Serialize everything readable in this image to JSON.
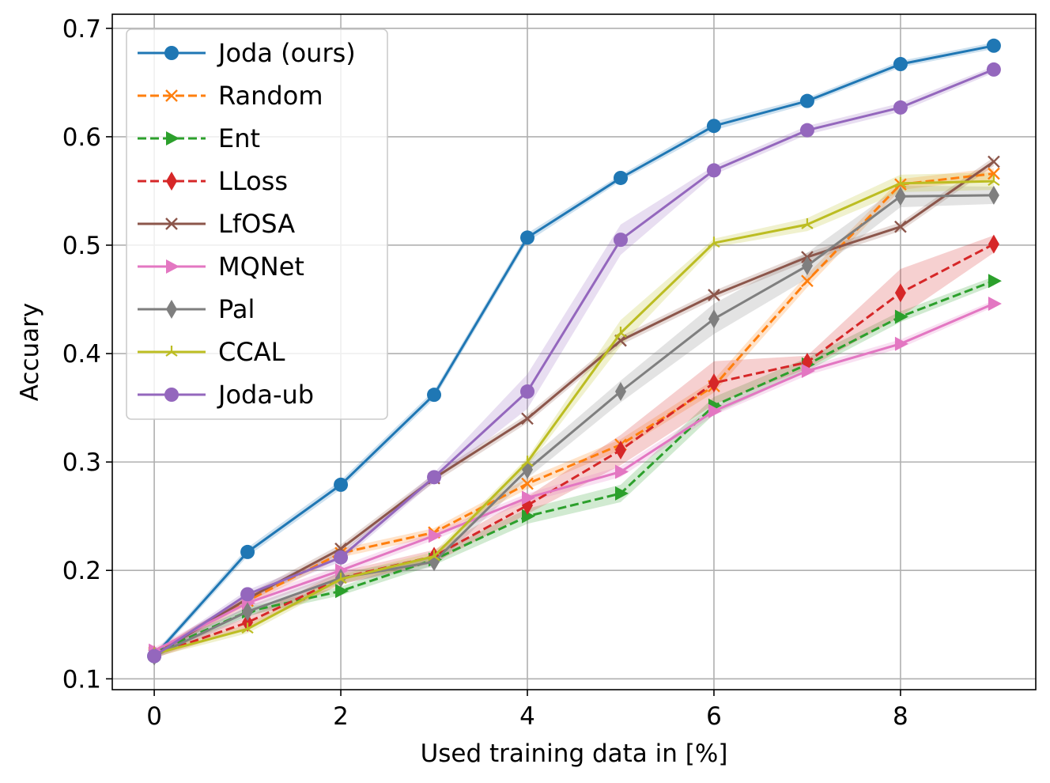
{
  "chart_data": {
    "type": "line",
    "title": "",
    "xlabel": "Used training data in [%]",
    "ylabel": "Accuary",
    "xlim": [
      -0.45,
      9.45
    ],
    "ylim": [
      0.09,
      0.713
    ],
    "xticks": [
      0,
      2,
      4,
      6,
      8
    ],
    "yticks": [
      0.1,
      0.2,
      0.3,
      0.4,
      0.5,
      0.6,
      0.7
    ],
    "xtick_labels": [
      "0",
      "2",
      "4",
      "6",
      "8"
    ],
    "ytick_labels": [
      "0.1",
      "0.2",
      "0.3",
      "0.4",
      "0.5",
      "0.6",
      "0.7"
    ],
    "grid": true,
    "legend_position": "upper-left",
    "x": [
      0,
      1,
      2,
      3,
      4,
      5,
      6,
      7,
      8,
      9
    ],
    "series": [
      {
        "name": "Joda (ours)",
        "color": "#1f77b4",
        "dash": "solid",
        "marker": "circle",
        "values": [
          0.121,
          0.217,
          0.279,
          0.362,
          0.507,
          0.562,
          0.61,
          0.633,
          0.667,
          0.684
        ],
        "band": [
          0.003,
          0.004,
          0.004,
          0.004,
          0.004,
          0.003,
          0.004,
          0.003,
          0.003,
          0.003
        ]
      },
      {
        "name": "Random",
        "color": "#ff7f0e",
        "dash": "dashed",
        "marker": "x",
        "values": [
          0.124,
          0.172,
          0.216,
          0.235,
          0.28,
          0.316,
          0.37,
          0.467,
          0.556,
          0.566
        ],
        "band": [
          0.003,
          0.004,
          0.004,
          0.004,
          0.005,
          0.005,
          0.006,
          0.006,
          0.005,
          0.005
        ]
      },
      {
        "name": "Ent",
        "color": "#2ca02c",
        "dash": "dashed",
        "marker": "triangle-right",
        "values": [
          0.124,
          0.162,
          0.181,
          0.21,
          0.25,
          0.271,
          0.352,
          0.39,
          0.434,
          0.467
        ],
        "band": [
          0.003,
          0.004,
          0.004,
          0.005,
          0.007,
          0.008,
          0.008,
          0.006,
          0.005,
          0.004
        ]
      },
      {
        "name": "LLoss",
        "color": "#d62728",
        "dash": "dashed",
        "marker": "diamond",
        "values": [
          0.122,
          0.152,
          0.193,
          0.213,
          0.26,
          0.311,
          0.373,
          0.392,
          0.456,
          0.501
        ],
        "band": [
          0.003,
          0.005,
          0.006,
          0.006,
          0.008,
          0.014,
          0.02,
          0.006,
          0.022,
          0.008
        ]
      },
      {
        "name": "LfOSA",
        "color": "#8c564b",
        "dash": "solid",
        "marker": "x",
        "values": [
          0.122,
          0.174,
          0.22,
          0.285,
          0.34,
          0.412,
          0.454,
          0.489,
          0.517,
          0.577
        ],
        "band": [
          0.003,
          0.004,
          0.004,
          0.004,
          0.004,
          0.004,
          0.004,
          0.004,
          0.004,
          0.004
        ]
      },
      {
        "name": "MQNet",
        "color": "#e377c2",
        "dash": "solid",
        "marker": "triangle-right",
        "values": [
          0.126,
          0.17,
          0.2,
          0.232,
          0.267,
          0.291,
          0.347,
          0.384,
          0.409,
          0.446
        ],
        "band": [
          0.003,
          0.005,
          0.004,
          0.004,
          0.004,
          0.005,
          0.004,
          0.004,
          0.004,
          0.003
        ]
      },
      {
        "name": "Pal",
        "color": "#7f7f7f",
        "dash": "solid",
        "marker": "diamond",
        "values": [
          0.121,
          0.162,
          0.193,
          0.208,
          0.293,
          0.365,
          0.432,
          0.481,
          0.545,
          0.546
        ],
        "band": [
          0.003,
          0.005,
          0.005,
          0.005,
          0.008,
          0.01,
          0.014,
          0.012,
          0.01,
          0.008
        ]
      },
      {
        "name": "CCAL",
        "color": "#bcbd22",
        "dash": "solid",
        "marker": "tri",
        "values": [
          0.123,
          0.146,
          0.192,
          0.213,
          0.3,
          0.419,
          0.502,
          0.519,
          0.557,
          0.559
        ],
        "band": [
          0.003,
          0.004,
          0.004,
          0.004,
          0.004,
          0.012,
          0.004,
          0.006,
          0.008,
          0.008
        ]
      },
      {
        "name": "Joda-ub",
        "color": "#9467bd",
        "dash": "solid",
        "marker": "circle",
        "values": [
          0.121,
          0.178,
          0.212,
          0.286,
          0.365,
          0.505,
          0.569,
          0.606,
          0.627,
          0.662
        ],
        "band": [
          0.003,
          0.004,
          0.004,
          0.004,
          0.016,
          0.014,
          0.004,
          0.004,
          0.004,
          0.003
        ]
      }
    ]
  }
}
